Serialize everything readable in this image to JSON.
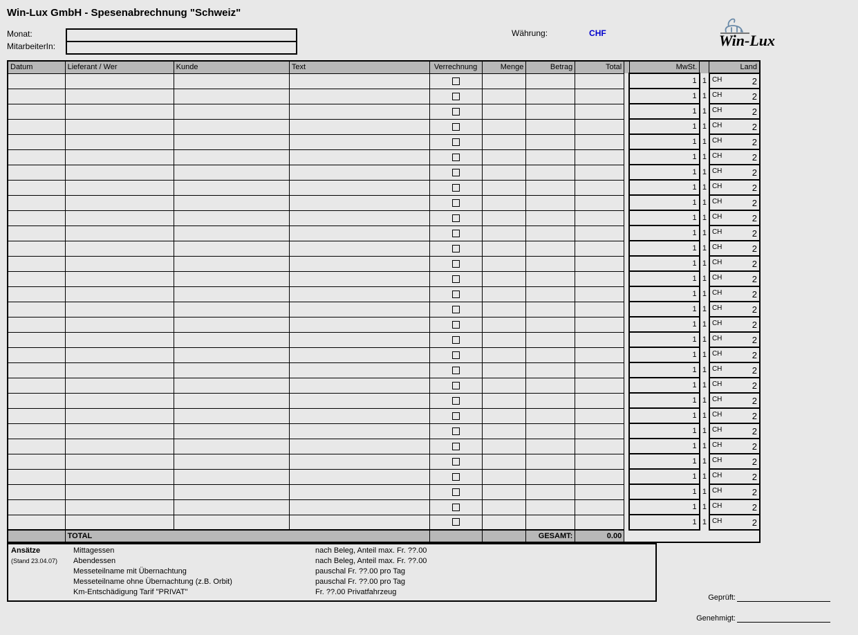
{
  "title": "Win-Lux GmbH - Spesenabrechnung \"Schweiz\"",
  "meta": {
    "month_label": "Monat:",
    "employee_label": "MitarbeiterIn:",
    "currency_label": "Währung:",
    "currency_value": "CHF"
  },
  "logo": {
    "text": "Win-Lux"
  },
  "table": {
    "headers": {
      "datum": "Datum",
      "lieferant": "Lieferant / Wer",
      "kunde": "Kunde",
      "text": "Text",
      "verrechnung": "Verrechnung",
      "menge": "Menge",
      "betrag": "Betrag",
      "total": "Total",
      "mwst": "MwSt.",
      "land": "Land"
    },
    "row_count": 30,
    "row_defaults": {
      "mwst": "1",
      "lsep": "1",
      "land_code": "CH",
      "land_num": "2"
    },
    "total_row": {
      "label": "TOTAL",
      "gesamt_label": "GESAMT:",
      "gesamt_value": "0.00"
    }
  },
  "rates": {
    "heading": "Ansätze",
    "subheading": "(Stand 23.04.07)",
    "lines": [
      {
        "name": "Mittagessen",
        "info": "nach Beleg, Anteil max. Fr. ??.00"
      },
      {
        "name": "Abendessen",
        "info": "nach Beleg, Anteil max. Fr. ??.00"
      },
      {
        "name": "Messeteilname mit Übernachtung",
        "info": "pauschal Fr. ??.00 pro Tag"
      },
      {
        "name": "Messeteilname ohne Übernachtung (z.B. Orbit)",
        "info": "pauschal Fr. ??.00 pro Tag"
      },
      {
        "name": "Km-Entschädigung Tarif \"PRIVAT\"",
        "info": "Fr. ??.00 Privatfahrzeug"
      }
    ]
  },
  "signatures": {
    "checked": "Geprüft:",
    "approved": "Genehmigt:"
  },
  "colors": {
    "bg": "#e8e8e8",
    "header_bg": "#b8b8b8",
    "accent": "#0000cc"
  }
}
